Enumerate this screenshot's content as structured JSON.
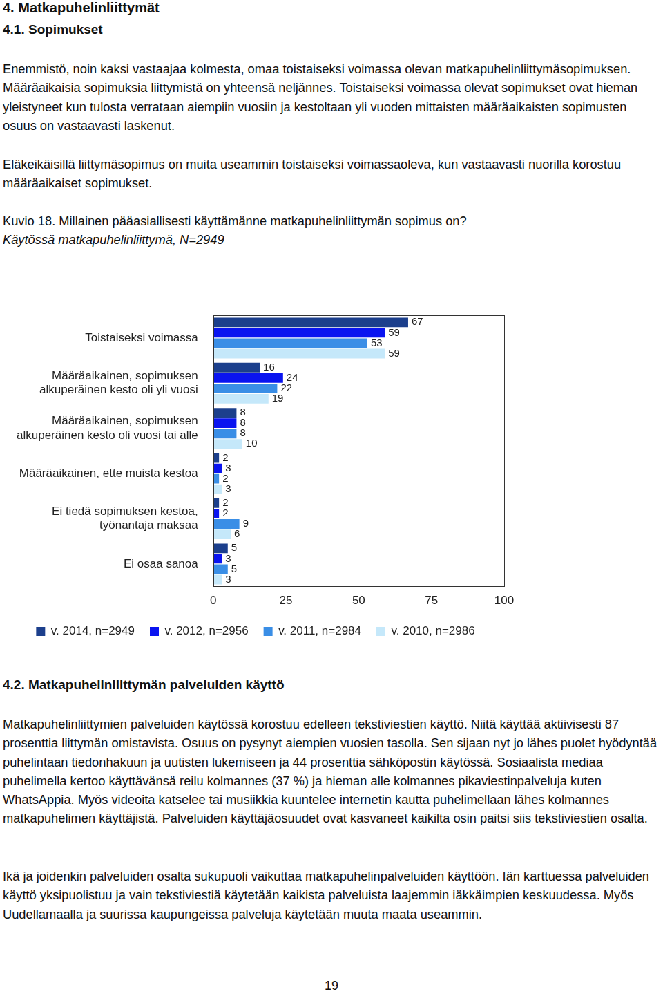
{
  "header": {
    "chapter": "4. Matkapuhelinliittymät",
    "section": "4.1. Sopimukset"
  },
  "paragraphs": [
    "Enemmistö, noin kaksi vastaajaa kolmesta, omaa toistaiseksi voimassa olevan matkapuhelinliittymäsopimuksen. Määräaikaisia sopimuksia liittymistä on yhteensä neljännes. Toistaiseksi voimassa olevat sopimukset ovat hieman yleistyneet kun tulosta verrataan aiempiin vuosiin ja kestoltaan yli vuoden mittaisten määräaikaisten sopimusten osuus on vastaavasti laskenut.",
    "Eläkeikäisillä liittymäsopimus on muita useammin toistaiseksi voimassaoleva, kun vastaavasti nuorilla korostuu määräaikaiset sopimukset."
  ],
  "figure": {
    "caption": "Kuvio 18. Millainen pääasiallisesti käyttämänne matkapuhelinliittymän sopimus on?",
    "base": "Käytössä matkapuhelinliittymä, N=2949"
  },
  "chart_data": {
    "type": "bar",
    "orientation": "horizontal",
    "categories": [
      [
        "Toistaiseksi voimassa"
      ],
      [
        "Määräaikainen, sopimuksen",
        "alkuperäinen kesto oli yli vuosi"
      ],
      [
        "Määräaikainen, sopimuksen",
        "alkuperäinen kesto oli vuosi tai alle"
      ],
      [
        "Määräaikainen, ette muista kestoa"
      ],
      [
        "Ei tiedä sopimuksen kestoa,",
        "työnantaja maksaa"
      ],
      [
        "Ei osaa sanoa"
      ]
    ],
    "series": [
      {
        "name": "v. 2014, n=2949",
        "color": "#1c3f8c",
        "values": [
          67,
          16,
          8,
          2,
          2,
          5
        ]
      },
      {
        "name": "v. 2012, n=2956",
        "color": "#0a14f0",
        "values": [
          59,
          24,
          8,
          3,
          2,
          3
        ]
      },
      {
        "name": "v. 2011, n=2984",
        "color": "#3a8ee6",
        "values": [
          53,
          22,
          8,
          2,
          9,
          5
        ]
      },
      {
        "name": "v. 2010, n=2986",
        "color": "#c5e8fa",
        "values": [
          59,
          19,
          10,
          3,
          6,
          3
        ]
      }
    ],
    "xlim": [
      0,
      100
    ],
    "xticks": [
      0,
      25,
      50,
      75,
      100
    ],
    "grid": false,
    "data_labels": true,
    "legend": "bottom"
  },
  "section2": {
    "heading": "4.2. Matkapuhelinliittymän palveluiden käyttö",
    "paragraphs": [
      "Matkapuhelinliittymien palveluiden käytössä korostuu edelleen tekstiviestien käyttö. Niitä käyttää aktiivisesti 87 prosenttia liittymän omistavista. Osuus on pysynyt aiempien vuosien tasolla. Sen sijaan nyt jo lähes puolet hyödyntää puhelintaan tiedonhakuun ja uutisten lukemiseen ja 44 prosenttia sähköpostin käytössä. Sosiaalista mediaa puhelimella kertoo käyttävänsä reilu kolmannes (37 %) ja hieman alle kolmannes pikaviestinpalveluja kuten WhatsAppia. Myös videoita katselee tai musiikkia kuuntelee internetin kautta puhelimellaan lähes kolmannes matkapuhelimen käyttäjistä. Palveluiden käyttäjäosuudet ovat kasvaneet kaikilta osin paitsi siis tekstiviestien osalta.",
      "Ikä ja joidenkin palveluiden osalta sukupuoli vaikuttaa matkapuhelinpalveluiden käyttöön. Iän karttuessa palveluiden käyttö yksipuolistuu ja vain tekstiviestiä käytetään kaikista palveluista laajemmin iäkkäimpien keskuudessa.  Myös Uudellamaalla ja suurissa kaupungeissa palveluja käytetään muuta maata useammin."
    ]
  },
  "page_number": 19
}
